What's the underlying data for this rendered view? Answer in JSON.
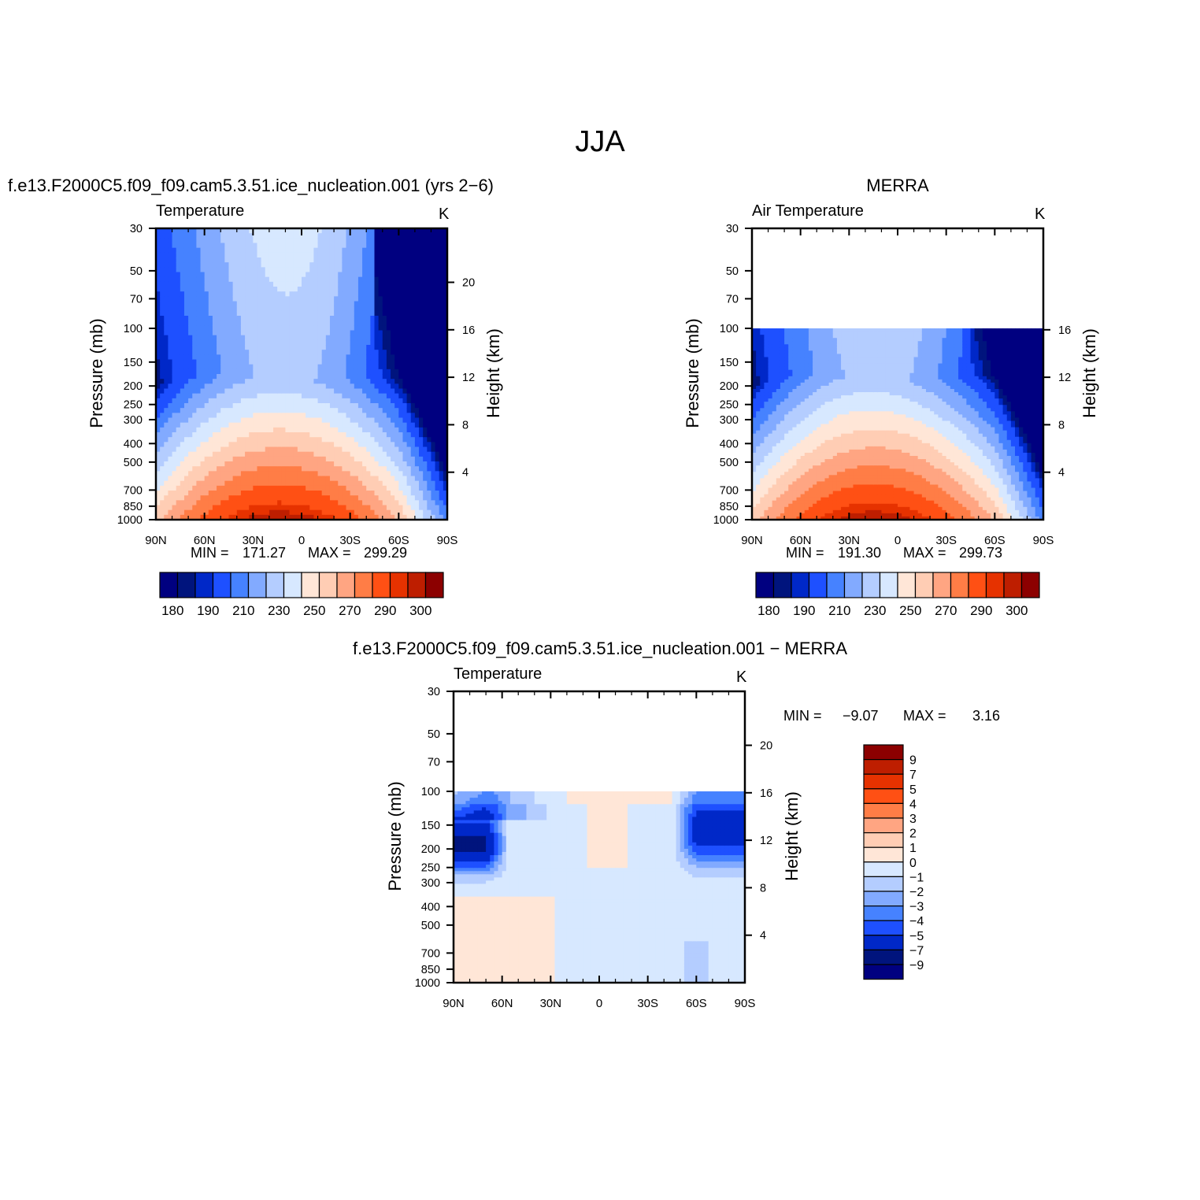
{
  "figure": {
    "title": "JJA",
    "contour_colors": [
      "#000080",
      "#00147d",
      "#0028c8",
      "#1e50ff",
      "#4682ff",
      "#82aaff",
      "#b4cdff",
      "#d7e8ff",
      "#ffe6d7",
      "#ffcdb4",
      "#ffa582",
      "#ff7d46",
      "#ff5014",
      "#e63200",
      "#be1e00",
      "#8c0000"
    ],
    "diff_colors": [
      "#000080",
      "#00147d",
      "#0028c8",
      "#1e50ff",
      "#4682ff",
      "#82aaff",
      "#b4cdff",
      "#d7e8ff",
      "#ffe6d7",
      "#ffcdb4",
      "#ffa582",
      "#ff7d46",
      "#ff5014",
      "#e63200",
      "#be1e00",
      "#8c0000"
    ]
  },
  "chart_data": [
    {
      "type": "heatmap",
      "panel": "model",
      "title": "f.e13.F2000C5.f09_f09.cam5.3.51.ice_nucleation.001 (yrs 2−6)",
      "left_label": "Temperature",
      "units": "K",
      "ylabel": "Pressure (mb)",
      "ylabel_right": "Height (km)",
      "x_ticks": [
        "90N",
        "60N",
        "30N",
        "0",
        "30S",
        "60S",
        "90S"
      ],
      "y_ticks": [
        "30",
        "50",
        "70",
        "100",
        "150",
        "200",
        "250",
        "300",
        "400",
        "500",
        "700",
        "850",
        "1000"
      ],
      "y_ticks_right": [
        "20",
        "16",
        "12",
        "8",
        "4"
      ],
      "ylim": [
        1000,
        30
      ],
      "min_label": "MIN =",
      "min_value": "171.27",
      "max_label": "MAX =",
      "max_value": "299.29",
      "levels": [
        180,
        185,
        190,
        200,
        210,
        220,
        230,
        240,
        250,
        260,
        270,
        280,
        290,
        295,
        300
      ],
      "colorbar_labels": [
        "180",
        "190",
        "210",
        "230",
        "250",
        "270",
        "290",
        "300"
      ]
    },
    {
      "type": "heatmap",
      "panel": "obs",
      "title": "MERRA",
      "left_label": "Air Temperature",
      "units": "K",
      "ylabel": "Pressure (mb)",
      "ylabel_right": "Height (km)",
      "x_ticks": [
        "90N",
        "60N",
        "30N",
        "0",
        "30S",
        "60S",
        "90S"
      ],
      "y_ticks": [
        "30",
        "50",
        "70",
        "100",
        "150",
        "200",
        "250",
        "300",
        "400",
        "500",
        "700",
        "850",
        "1000"
      ],
      "y_ticks_right": [
        "16",
        "12",
        "8",
        "4"
      ],
      "ylim": [
        1000,
        30
      ],
      "data_top": 100,
      "min_label": "MIN =",
      "min_value": "191.30",
      "max_label": "MAX =",
      "max_value": "299.73",
      "levels": [
        180,
        185,
        190,
        200,
        210,
        220,
        230,
        240,
        250,
        260,
        270,
        280,
        290,
        295,
        300
      ],
      "colorbar_labels": [
        "180",
        "190",
        "210",
        "230",
        "250",
        "270",
        "290",
        "300"
      ]
    },
    {
      "type": "heatmap",
      "panel": "diff",
      "title": "f.e13.F2000C5.f09_f09.cam5.3.51.ice_nucleation.001 − MERRA",
      "left_label": "Temperature",
      "units": "K",
      "ylabel": "Pressure (mb)",
      "ylabel_right": "Height (km)",
      "x_ticks": [
        "90N",
        "60N",
        "30N",
        "0",
        "30S",
        "60S",
        "90S"
      ],
      "y_ticks": [
        "30",
        "50",
        "70",
        "100",
        "150",
        "200",
        "250",
        "300",
        "400",
        "500",
        "700",
        "850",
        "1000"
      ],
      "y_ticks_right": [
        "20",
        "16",
        "12",
        "8",
        "4"
      ],
      "ylim": [
        1000,
        30
      ],
      "data_top": 100,
      "min_label": "MIN =",
      "min_value": "−9.07",
      "max_label": "MAX =",
      "max_value": "3.16",
      "levels": [
        -9,
        -7,
        -5,
        -4,
        -3,
        -2,
        -1,
        0,
        1,
        2,
        3,
        4,
        5,
        7,
        9
      ],
      "colorbar_labels": [
        "9",
        "7",
        "5",
        "4",
        "3",
        "2",
        "1",
        "0",
        "−1",
        "−2",
        "−3",
        "−4",
        "−5",
        "−7",
        "−9"
      ]
    }
  ]
}
